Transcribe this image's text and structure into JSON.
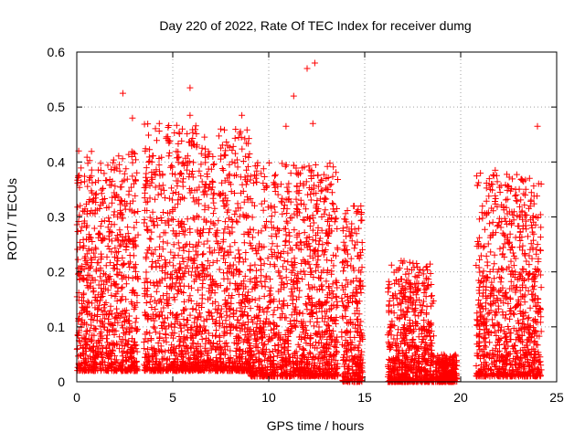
{
  "chart_data": {
    "type": "scatter",
    "title": "Day 220 of 2022, Rate Of TEC Index for receiver dumg",
    "xlabel": "GPS time / hours",
    "ylabel": "ROTI / TECUs",
    "xlim": [
      0,
      25
    ],
    "ylim": [
      0,
      0.6
    ],
    "xticks": [
      0,
      5,
      10,
      15,
      20,
      25
    ],
    "xtick_labels": [
      "0",
      "5",
      "10",
      "15",
      "20",
      "25"
    ],
    "yticks": [
      0,
      0.1,
      0.2,
      0.3,
      0.4,
      0.5,
      0.6
    ],
    "ytick_labels": [
      "0",
      "0.1",
      "0.2",
      "0.3",
      "0.4",
      "0.5",
      "0.6"
    ],
    "grid": true,
    "marker": "+",
    "marker_color": "#ff0000",
    "notable_points": [
      {
        "x": 0.1,
        "y": 0.42
      },
      {
        "x": 2.4,
        "y": 0.525
      },
      {
        "x": 2.9,
        "y": 0.48
      },
      {
        "x": 4.3,
        "y": 0.47
      },
      {
        "x": 5.9,
        "y": 0.535
      },
      {
        "x": 5.9,
        "y": 0.485
      },
      {
        "x": 7.5,
        "y": 0.46
      },
      {
        "x": 8.6,
        "y": 0.485
      },
      {
        "x": 10.9,
        "y": 0.465
      },
      {
        "x": 11.3,
        "y": 0.52
      },
      {
        "x": 12.0,
        "y": 0.57
      },
      {
        "x": 12.4,
        "y": 0.58
      },
      {
        "x": 12.3,
        "y": 0.47
      },
      {
        "x": 14.8,
        "y": 0.32
      },
      {
        "x": 16.9,
        "y": 0.22
      },
      {
        "x": 18.1,
        "y": 0.18
      },
      {
        "x": 21.8,
        "y": 0.385
      },
      {
        "x": 22.9,
        "y": 0.34
      },
      {
        "x": 24.0,
        "y": 0.465
      }
    ],
    "activity_segments": [
      {
        "x": [
          0.0,
          3.2
        ],
        "peak": 0.42,
        "base": 0.02
      },
      {
        "x": [
          3.5,
          6.3
        ],
        "peak": 0.47,
        "base": 0.02
      },
      {
        "x": [
          6.3,
          9.0
        ],
        "peak": 0.46,
        "base": 0.02
      },
      {
        "x": [
          9.0,
          13.6
        ],
        "peak": 0.4,
        "base": 0.01
      },
      {
        "x": [
          13.8,
          14.9
        ],
        "peak": 0.32,
        "base": 0.0
      },
      {
        "x": [
          16.2,
          18.6
        ],
        "peak": 0.22,
        "base": 0.0
      },
      {
        "x": [
          18.7,
          19.8
        ],
        "peak": 0.05,
        "base": 0.0
      },
      {
        "x": [
          20.8,
          24.2
        ],
        "peak": 0.38,
        "base": 0.01
      }
    ]
  }
}
